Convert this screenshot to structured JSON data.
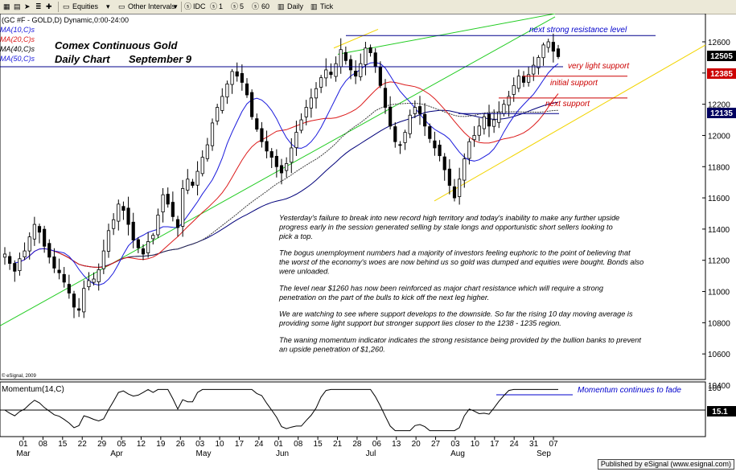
{
  "toolbar": {
    "equities": "Equities",
    "other_intervals": "Other Intervals",
    "idc": "IDC",
    "i1": "1",
    "i5": "5",
    "i60": "60",
    "daily": "Daily",
    "tick": "Tick"
  },
  "header": {
    "symbol_line": "(GC #F - GOLD,D) Dynamic,0:00-24:00",
    "ma10": "MA(10,C)s",
    "ma20": "MA(20,C)s",
    "ma40": "MA(40,C)s",
    "ma50": "MA(50,C)s",
    "title1": "Comex Continuous Gold",
    "title2": "Daily Chart",
    "date": "September 9"
  },
  "annotations": {
    "resistance": "next strong resistance level",
    "light_support": "very light support",
    "initial_support": "initial support",
    "next_support": "next support",
    "momentum_fade": "Momentum continues to fade"
  },
  "commentary": [
    "Yesterday's failure to break into new record high territory and today's inability to make any further upside progress early in the session generated selling by stale longs and opportunistic short sellers looking to pick a top.",
    "The bogus unemployment numbers had a majority of investors feeling euphoric to the point of believing that the worst of the economy's woes are now behind us so gold was dumped and equities were bought. Bonds also were unloaded.",
    "The level near $1260 has now been reinforced as major chart resistance which will require a strong penetration on the part of the bulls to kick off the next leg higher.",
    "We are watching to see where support develops to the downside. So far the rising 10 day moving average is providing some light support but stronger support lies closer to the 1238 - 1235 region.",
    "The waning momentum indicator indicates the strong resistance being provided by the bullion banks to prevent an upside penetration of $1,260."
  ],
  "price_badges": {
    "last": "12505",
    "b2": "12385",
    "b3": "12135"
  },
  "copyright": "© eSignal, 2009",
  "momentum": {
    "label": "Momentum(14,C)",
    "tick_top": "100",
    "last": "15.1"
  },
  "footer": "Published by eSignal (www.esignal.com)",
  "colors": {
    "ma10": "#1a1adc",
    "ma20": "#dc1a1a",
    "ma40": "#3c3c3c",
    "ma50": "#00007a",
    "uptrend": "#22cc22",
    "support_channel": "#f2d400",
    "annotation_blue": "#0000cc",
    "annotation_red": "#cc0000"
  },
  "chart_data": {
    "type": "candlestick",
    "title": "Comex Continuous Gold Daily Chart September 9",
    "y_ticks": [
      "12600",
      "12400",
      "12200",
      "12000",
      "11800",
      "11600",
      "11400",
      "11200",
      "11000",
      "10800",
      "10600",
      "10400"
    ],
    "ylim": [
      10320,
      12680
    ],
    "x_ticks": [
      "01",
      "08",
      "15",
      "22",
      "29",
      "05",
      "12",
      "19",
      "26",
      "03",
      "10",
      "17",
      "24",
      "01",
      "08",
      "15",
      "21",
      "28",
      "06",
      "13",
      "20",
      "27",
      "03",
      "10",
      "17",
      "24",
      "31",
      "07"
    ],
    "month_labels": [
      "Mar",
      "Apr",
      "May",
      "Jun",
      "Jul",
      "Aug",
      "Sep"
    ],
    "levels": {
      "next_strong_resistance": 12640,
      "very_light_support": 12460,
      "initial_support": 12380,
      "next_support": 12240
    },
    "close_series_approx": [
      11240,
      11180,
      11130,
      11210,
      11260,
      11350,
      11430,
      11380,
      11290,
      11220,
      11150,
      11120,
      11060,
      10990,
      10900,
      10880,
      11020,
      11070,
      11080,
      11140,
      11260,
      11390,
      11460,
      11560,
      11520,
      11430,
      11330,
      11280,
      11240,
      11320,
      11360,
      11490,
      11620,
      11560,
      11480,
      11410,
      11660,
      11720,
      11680,
      11770,
      11860,
      11940,
      12080,
      12180,
      12250,
      12330,
      12410,
      12380,
      12340,
      12260,
      12120,
      12040,
      11960,
      11900,
      11860,
      11800,
      11760,
      11820,
      11920,
      12020,
      12100,
      12180,
      12240,
      12300,
      12370,
      12420,
      12390,
      12460,
      12550,
      12480,
      12420,
      12380,
      12460,
      12560,
      12530,
      12440,
      12320,
      12180,
      12060,
      11960,
      11940,
      12020,
      12130,
      12180,
      12140,
      12060,
      11980,
      11920,
      11870,
      11780,
      11680,
      11600,
      11720,
      11850,
      11960,
      12000,
      12060,
      12120,
      12060,
      12100,
      12150,
      12200,
      12250,
      12320,
      12380,
      12340,
      12390,
      12450,
      12500,
      12580,
      12600,
      12540,
      12505
    ],
    "momentum_range": [
      -100,
      100
    ],
    "momentum_last": 15.1
  }
}
